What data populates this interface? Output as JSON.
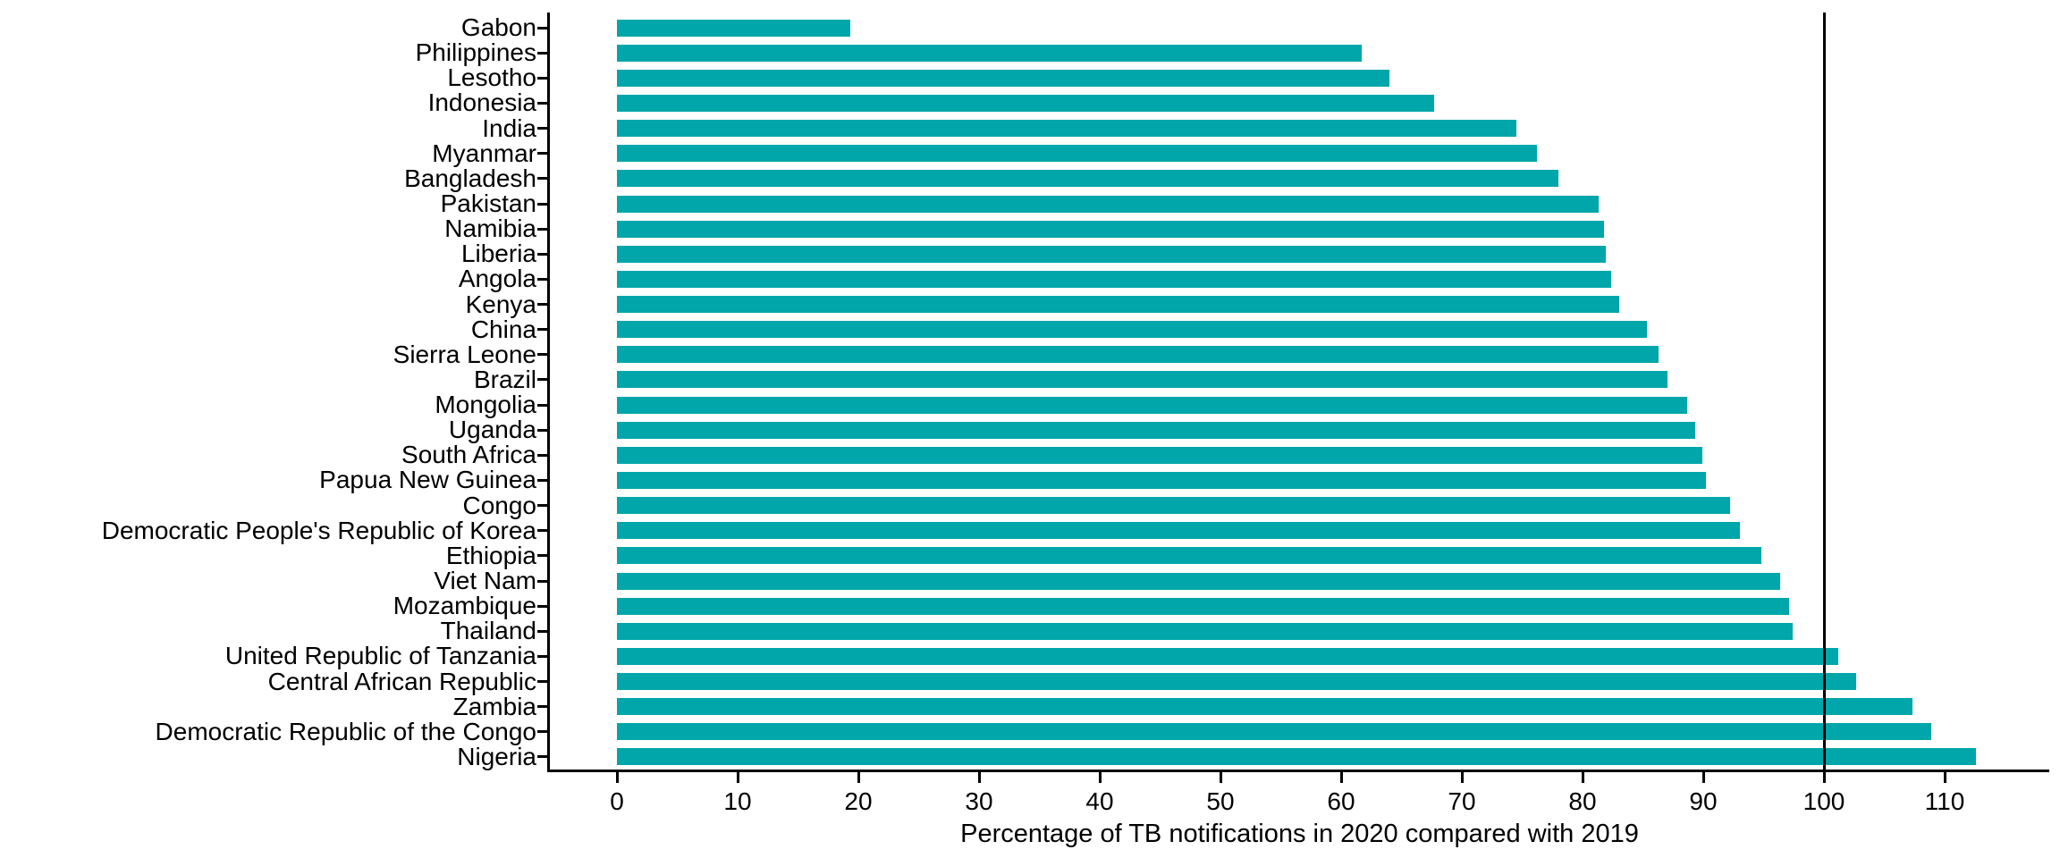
{
  "chart_data": {
    "type": "bar",
    "orientation": "horizontal",
    "title": "",
    "xlabel": "Percentage of TB notifications in 2020 compared with 2019",
    "ylabel": "",
    "categories": [
      "Gabon",
      "Philippines",
      "Lesotho",
      "Indonesia",
      "India",
      "Myanmar",
      "Bangladesh",
      "Pakistan",
      "Namibia",
      "Liberia",
      "Angola",
      "Kenya",
      "China",
      "Sierra Leone",
      "Brazil",
      "Mongolia",
      "Uganda",
      "South Africa",
      "Papua New Guinea",
      "Congo",
      "Democratic People's Republic of Korea",
      "Ethiopia",
      "Viet Nam",
      "Mozambique",
      "Thailand",
      "United Republic of Tanzania",
      "Central African Republic",
      "Zambia",
      "Democratic Republic of the Congo",
      "Nigeria"
    ],
    "values": [
      19.3,
      61.7,
      64.0,
      67.7,
      74.5,
      76.2,
      78.0,
      81.3,
      81.8,
      81.9,
      82.4,
      83.0,
      85.3,
      86.3,
      87.0,
      88.7,
      89.3,
      89.9,
      90.2,
      92.2,
      93.0,
      94.8,
      96.4,
      97.1,
      97.4,
      101.2,
      102.7,
      107.3,
      108.9,
      112.6
    ],
    "x_ticks": [
      0,
      10,
      20,
      30,
      40,
      50,
      60,
      70,
      80,
      90,
      100,
      110
    ],
    "xlim": [
      0,
      118
    ],
    "reference_line_x": 100,
    "grid": false,
    "legend": "none",
    "bar_color": "#00A6A9",
    "axis_color": "#000000",
    "text_color": "#000000"
  }
}
